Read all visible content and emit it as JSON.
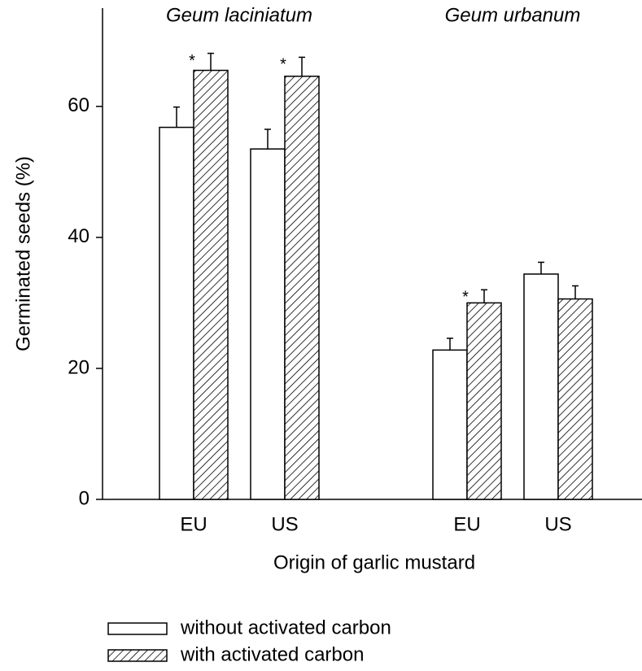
{
  "chart_data": {
    "type": "bar",
    "y_label": "Germinated seeds (%)",
    "x_label": "Origin of garlic mustard",
    "groups": [
      "Geum laciniatum",
      "Geum urbanum"
    ],
    "categories": [
      "EU",
      "US",
      "EU",
      "US"
    ],
    "series": [
      {
        "name": "without activated carbon",
        "color": "#ffffff",
        "hatch": false,
        "values": [
          56.8,
          53.5,
          22.8,
          34.4
        ],
        "errors": [
          3.1,
          3.0,
          1.8,
          1.8
        ]
      },
      {
        "name": "with activated carbon",
        "color": "#ffffff",
        "hatch": true,
        "values": [
          65.5,
          64.6,
          30.0,
          30.6
        ],
        "errors": [
          2.6,
          2.9,
          2.0,
          2.0
        ],
        "annotations": [
          "*",
          "*",
          "*",
          null
        ]
      }
    ],
    "ylim": [
      0,
      75
    ],
    "yticks": [
      0,
      20,
      40,
      60
    ],
    "grid": false
  }
}
